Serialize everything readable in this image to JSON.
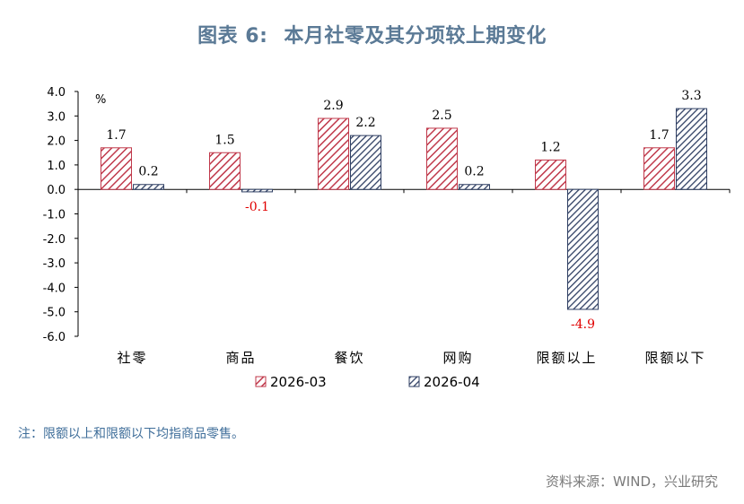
{
  "header": {
    "figure_no": "图表 6:",
    "title_text": "本月社零及其分项较上期变化"
  },
  "note": "注：限额以上和限额以下均指商品零售。",
  "source": "资料来源：WIND，兴业研究",
  "colors": {
    "series1": "#c0394b",
    "series2": "#2f3f63",
    "negative_label": "#e00000",
    "axis": "#000000"
  },
  "chart_data": {
    "type": "bar",
    "unit": "%",
    "categories": [
      "社零",
      "商品",
      "餐饮",
      "网购",
      "限额以上",
      "限额以下"
    ],
    "series": [
      {
        "name": "2026-03",
        "values": [
          1.7,
          1.5,
          2.9,
          2.5,
          1.2,
          1.7
        ],
        "pattern": "diagonal-hatch"
      },
      {
        "name": "2026-04",
        "values": [
          0.2,
          -0.1,
          2.2,
          0.2,
          -4.9,
          3.3
        ],
        "pattern": "diagonal-hatch-dense"
      }
    ],
    "value_labels": [
      [
        "1.7",
        "1.5",
        "2.9",
        "2.5",
        "1.2",
        "1.7"
      ],
      [
        "0.2",
        "-0.1",
        "2.2",
        "0.2",
        "-4.9",
        "3.3"
      ]
    ],
    "yticks": [
      "4.0",
      "3.0",
      "2.0",
      "1.0",
      "0.0",
      "-1.0",
      "-2.0",
      "-3.0",
      "-4.0",
      "-5.0",
      "-6.0"
    ],
    "ylim": [
      -6,
      4
    ],
    "legend_position": "bottom",
    "grid": false
  }
}
